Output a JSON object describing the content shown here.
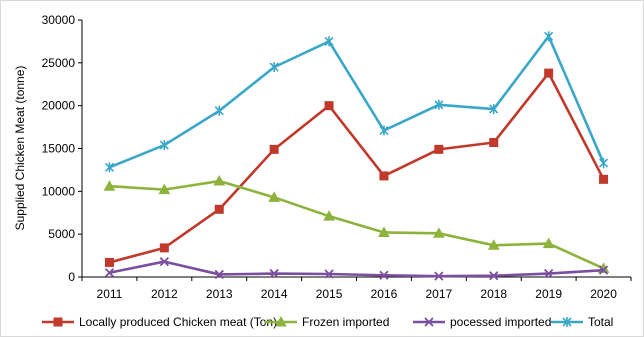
{
  "chart_data": {
    "type": "line",
    "title": "",
    "xlabel": "",
    "ylabel": "Supplied Chicken Meat (tonne)",
    "ylim": [
      0,
      30000
    ],
    "yticks": [
      "0",
      "5000",
      "10000",
      "15000",
      "20000",
      "25000",
      "30000"
    ],
    "x": [
      "2011",
      "2012",
      "2013",
      "2014",
      "2015",
      "2016",
      "2017",
      "2018",
      "2019",
      "2020"
    ],
    "grid": false,
    "legend_position": "bottom",
    "series": [
      {
        "name": "Locally produced Chicken meat  (Ton)",
        "color": "#c0392b",
        "marker": "square",
        "values": [
          1700,
          3400,
          7900,
          14900,
          20000,
          11800,
          14900,
          15700,
          23800,
          11400
        ]
      },
      {
        "name": "Frozen imported",
        "color": "#8db33c",
        "marker": "triangle",
        "values": [
          10600,
          10200,
          11200,
          9300,
          7100,
          5200,
          5100,
          3700,
          3900,
          1000
        ]
      },
      {
        "name": "pocessed imported",
        "color": "#7b4fa0",
        "marker": "x",
        "values": [
          500,
          1800,
          300,
          400,
          350,
          200,
          100,
          150,
          400,
          800
        ]
      },
      {
        "name": "Total",
        "color": "#3aa7c9",
        "marker": "star",
        "values": [
          12800,
          15400,
          19400,
          24500,
          27500,
          17100,
          20100,
          19600,
          28100,
          13300
        ]
      }
    ]
  }
}
